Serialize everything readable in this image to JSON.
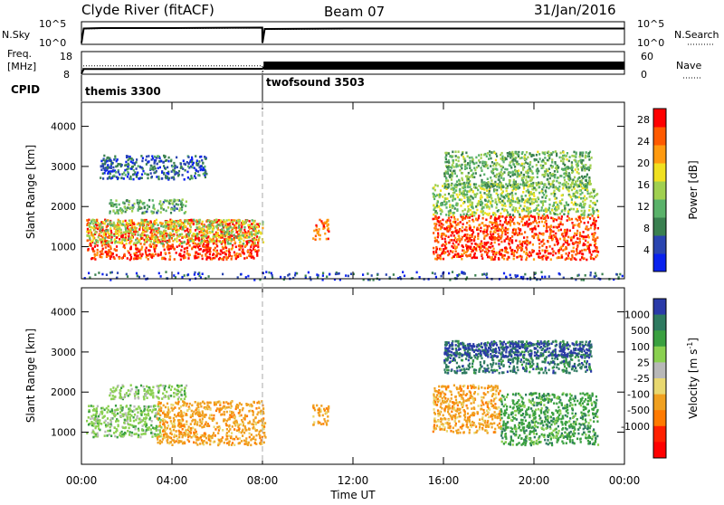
{
  "header": {
    "station": "Clyde River (fitACF)",
    "beam": "Beam 07",
    "date": "31/Jan/2016"
  },
  "colors": {
    "power_scale": [
      "#0a22ee",
      "#2a45b0",
      "#3a8050",
      "#5ab26a",
      "#a0d050",
      "#f0e020",
      "#ff9a10",
      "#ff5a00",
      "#ff0000"
    ],
    "velocity_scale": [
      "#2a3aa8",
      "#2e7a60",
      "#3aa040",
      "#8ad050",
      "#b8b8b8",
      "#e8d870",
      "#f0a020",
      "#ff7a00",
      "#ff2000",
      "#ff0000"
    ]
  },
  "chart_data": [
    {
      "type": "line",
      "panel": "noise",
      "left_label": "N.Sky",
      "right_label": "N.Search",
      "left_ticks": [
        "10^5",
        "10^0"
      ],
      "right_ticks": [
        "10^5",
        "10^0"
      ],
      "x": [
        0,
        0.1,
        0.9,
        4,
        7.99,
        8,
        8.1,
        12,
        16,
        20,
        24
      ],
      "series": [
        {
          "name": "N.Sky",
          "values": [
            0.3,
            3.5,
            3.6,
            3.6,
            3.7,
            0.3,
            3.4,
            3.5,
            3.5,
            3.5,
            3.5
          ]
        },
        {
          "name": "N.Search",
          "values": [
            0.3,
            3.4,
            3.5,
            3.5,
            3.6,
            0.3,
            3.3,
            3.4,
            3.4,
            3.4,
            3.4
          ]
        }
      ]
    },
    {
      "type": "line",
      "panel": "frequency",
      "left_label_top": "Freq.",
      "left_label_bottom": "[MHz]",
      "right_label": "Nave",
      "left_ticks": [
        "18",
        "8"
      ],
      "right_ticks": [
        "60",
        "0"
      ],
      "x": [
        0,
        0.1,
        4,
        7.99,
        8,
        8.1,
        12,
        16,
        20,
        24
      ],
      "series": [
        {
          "name": "Freq.",
          "values": [
            8.3,
            10.3,
            10.4,
            10.4,
            10.5,
            11.3,
            11.4,
            11.4,
            11.3,
            11.4
          ]
        },
        {
          "name": "Nave",
          "values": [
            0,
            22,
            22,
            22,
            0,
            32,
            32,
            32,
            32,
            32
          ]
        }
      ]
    },
    {
      "type": "table",
      "panel": "cpid",
      "label": "CPID",
      "modes": [
        {
          "name": "themis 3300",
          "start": 0,
          "end": 8
        },
        {
          "name": "twofsound 3503",
          "start": 8,
          "end": 24
        }
      ]
    },
    {
      "type": "heatmap",
      "panel": "power",
      "ylabel": "Slant Range [km]",
      "xlim": [
        0,
        24
      ],
      "ylim": [
        200,
        4600
      ],
      "yticks": [
        1000,
        2000,
        3000,
        4000
      ],
      "colorbar": {
        "label": "Power [dB]",
        "ticks": [
          4,
          8,
          12,
          16,
          20,
          24,
          28
        ],
        "range": [
          0,
          30
        ]
      },
      "regions": [
        {
          "t": [
            0.2,
            7.8
          ],
          "r": [
            700,
            1700
          ],
          "value": 27
        },
        {
          "t": [
            0.2,
            8.0
          ],
          "r": [
            1100,
            1700
          ],
          "value": 16
        },
        {
          "t": [
            1.2,
            4.6
          ],
          "r": [
            1850,
            2200
          ],
          "value": 11
        },
        {
          "t": [
            0.8,
            5.5
          ],
          "r": [
            2700,
            3300
          ],
          "value": 6
        },
        {
          "t": [
            10.2,
            10.9
          ],
          "r": [
            1200,
            1700
          ],
          "value": 24
        },
        {
          "t": [
            15.5,
            22.8
          ],
          "r": [
            700,
            1800
          ],
          "value": 26
        },
        {
          "t": [
            15.5,
            22.8
          ],
          "r": [
            1800,
            2600
          ],
          "value": 14
        },
        {
          "t": [
            16.0,
            22.5
          ],
          "r": [
            2500,
            3400
          ],
          "value": 12
        },
        {
          "t": [
            0,
            24
          ],
          "r": [
            200,
            400
          ],
          "value": 5
        }
      ]
    },
    {
      "type": "heatmap",
      "panel": "velocity",
      "ylabel": "Slant Range [km]",
      "xlabel": "Time UT",
      "xticks": [
        "00:00",
        "04:00",
        "08:00",
        "12:00",
        "16:00",
        "20:00",
        "00:00"
      ],
      "xlim": [
        0,
        24
      ],
      "ylim": [
        200,
        4600
      ],
      "yticks": [
        1000,
        2000,
        3000,
        4000
      ],
      "colorbar": {
        "label": "Velocity [m s^-1]",
        "ticks": [
          "1000",
          "500",
          "100",
          "25",
          "-25",
          "-100",
          "-500",
          "-1000"
        ]
      },
      "regions": [
        {
          "t": [
            0.2,
            3.5
          ],
          "r": [
            900,
            1700
          ],
          "value": 60
        },
        {
          "t": [
            3.3,
            8.1
          ],
          "r": [
            700,
            1800
          ],
          "value": -150
        },
        {
          "t": [
            1.2,
            4.6
          ],
          "r": [
            1850,
            2200
          ],
          "value": 80
        },
        {
          "t": [
            10.2,
            10.9
          ],
          "r": [
            1200,
            1700
          ],
          "value": -150
        },
        {
          "t": [
            15.5,
            18.5
          ],
          "r": [
            1000,
            2200
          ],
          "value": -150
        },
        {
          "t": [
            18.5,
            22.8
          ],
          "r": [
            700,
            2000
          ],
          "value": 300
        },
        {
          "t": [
            16.0,
            22.5
          ],
          "r": [
            2500,
            3300
          ],
          "value": 500
        },
        {
          "t": [
            16.0,
            22.5
          ],
          "r": [
            2900,
            3250
          ],
          "value": 1000
        }
      ]
    }
  ]
}
